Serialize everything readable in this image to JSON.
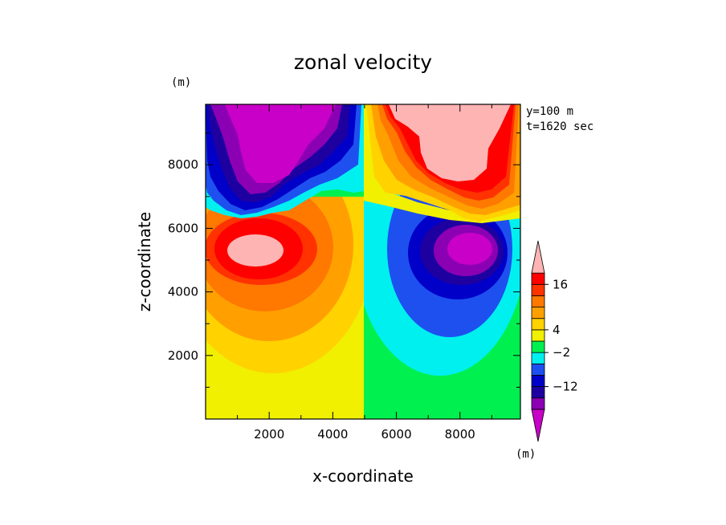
{
  "chart_data": {
    "type": "heatmap",
    "title": "zonal velocity",
    "xlabel": "x-coordinate",
    "ylabel": "z-coordinate",
    "y_unit": "(m)",
    "colorbar_unit": "(m)",
    "annotation_lines": [
      "y=100 m",
      "t=1620 sec"
    ],
    "xlim": [
      0,
      9900
    ],
    "ylim": [
      0,
      9900
    ],
    "xticks": [
      "2000",
      "4000",
      "6000",
      "8000"
    ],
    "yticks": [
      "2000",
      "4000",
      "6000",
      "8000"
    ],
    "xtick_values": [
      2000,
      4000,
      6000,
      8000
    ],
    "ytick_values": [
      2000,
      4000,
      6000,
      8000
    ],
    "grid": false,
    "legend": "colorbar right",
    "colorbar": {
      "colors_bottom_to_top": [
        "#c800c8",
        "#8c00b4",
        "#1e00a0",
        "#0000c8",
        "#1e50f0",
        "#00f0f0",
        "#00f050",
        "#f0f000",
        "#ffd200",
        "#ffa000",
        "#ff7800",
        "#ff3200",
        "#ff0000",
        "#ffb4b4"
      ],
      "labels": [
        {
          "text": "16",
          "value": 16
        },
        {
          "text": "4",
          "value": 4
        },
        {
          "text": "−2",
          "value": -2
        },
        {
          "text": "−12",
          "value": -12
        }
      ]
    }
  }
}
